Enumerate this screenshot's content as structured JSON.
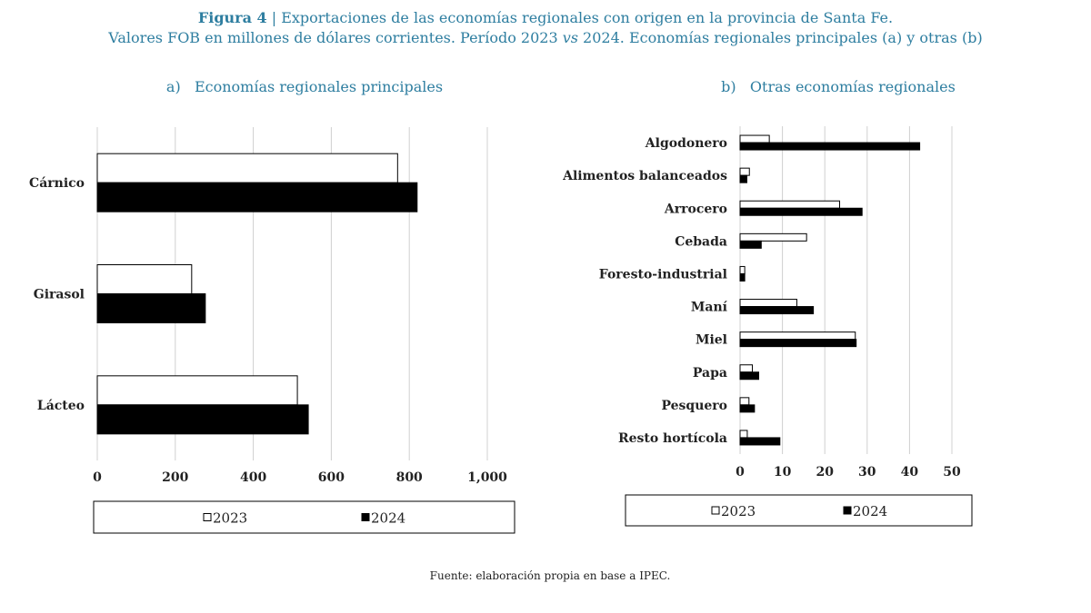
{
  "figure": {
    "label": "Figura 4",
    "title_rest": " | Exportaciones de las economías regionales con origen en la provincia de Santa Fe.",
    "subtitle_a": "Valores FOB en millones de dólares corrientes. Período 2023 ",
    "subtitle_vs": "vs",
    "subtitle_b": " 2024. Economías regionales principales (a) y otras (b)",
    "title_color": "#2e7ea0",
    "source": "Fuente: elaboración propia en base a IPEC."
  },
  "chart_data": [
    {
      "type": "bar",
      "orientation": "horizontal",
      "title": "a)   Economías regionales principales",
      "categories": [
        "Cárnico",
        "Girasol",
        "Lácteo"
      ],
      "series": [
        {
          "name": "2023",
          "values": [
            770,
            242,
            513
          ],
          "color": "#ffffff"
        },
        {
          "name": "2024",
          "values": [
            820,
            277,
            541
          ],
          "color": "#000000"
        }
      ],
      "xlim": [
        0,
        1000
      ],
      "xticks": [
        "0",
        "200",
        "400",
        "600",
        "800",
        "1,000"
      ],
      "xtick_values": [
        0,
        200,
        400,
        600,
        800,
        1000
      ],
      "grid": true,
      "legend": "bottom"
    },
    {
      "type": "bar",
      "orientation": "horizontal",
      "title": "b)   Otras economías regionales",
      "categories": [
        "Algodonero",
        "Alimentos balanceados",
        "Arrocero",
        "Cebada",
        "Foresto-industrial",
        "Maní",
        "Miel",
        "Papa",
        "Pesquero",
        "Resto hortícola"
      ],
      "series": [
        {
          "name": "2023",
          "values": [
            6.9,
            2.2,
            23.5,
            15.7,
            1.1,
            13.4,
            27.2,
            2.9,
            2.1,
            1.7
          ],
          "color": "#ffffff"
        },
        {
          "name": "2024",
          "values": [
            42.4,
            1.6,
            28.8,
            5.0,
            1.1,
            17.3,
            27.4,
            4.4,
            3.4,
            9.4
          ],
          "color": "#000000"
        }
      ],
      "xlim": [
        0,
        50
      ],
      "xticks": [
        "0",
        "10",
        "20",
        "30",
        "40",
        "50"
      ],
      "xtick_values": [
        0,
        10,
        20,
        30,
        40,
        50
      ],
      "grid": true,
      "legend": "bottom"
    }
  ]
}
